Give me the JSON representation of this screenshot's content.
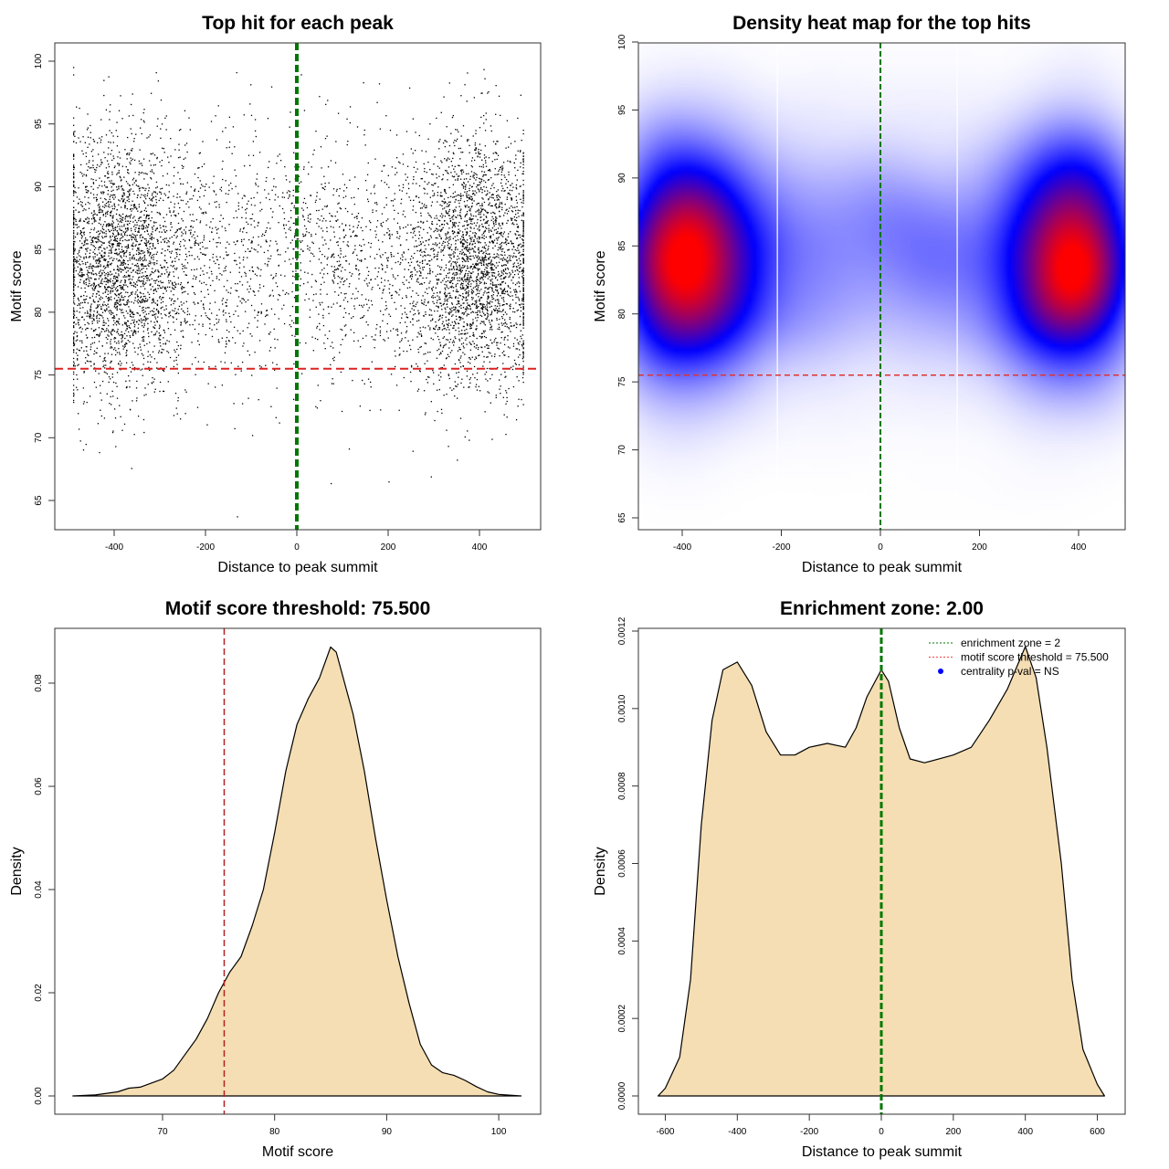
{
  "chart_data": [
    {
      "type": "scatter",
      "title": "Top hit for each peak",
      "xlabel": "Distance to peak summit",
      "ylabel": "Motif score",
      "xticks": [
        "-400",
        "-200",
        "0",
        "200",
        "400"
      ],
      "xtick_values": [
        -400,
        -200,
        0,
        200,
        400
      ],
      "yticks": [
        "65",
        "70",
        "75",
        "80",
        "85",
        "90",
        "95",
        "100"
      ],
      "ytick_values": [
        65,
        70,
        75,
        80,
        85,
        90,
        95,
        100
      ],
      "xlim": [
        -530,
        534
      ],
      "ylim": [
        62.8,
        101.5
      ],
      "threshold": 75.5,
      "enrichment_center": 0,
      "points_generator": {
        "n": 7000,
        "x_range": [
          -490,
          495
        ],
        "y_mean": 84,
        "y_sd": 5,
        "seed": 7
      },
      "colors": {
        "points": "#000000",
        "threshold": "#dd2222",
        "center": "#007700"
      }
    },
    {
      "type": "heatmap",
      "title": "Density heat map for the top hits",
      "xlabel": "Distance to peak summit",
      "ylabel": "Motif score",
      "xticks": [
        "-400",
        "-200",
        "0",
        "200",
        "400"
      ],
      "xtick_values": [
        -400,
        -200,
        0,
        200,
        400
      ],
      "yticks": [
        "65",
        "70",
        "75",
        "80",
        "85",
        "90",
        "95",
        "100"
      ],
      "ytick_values": [
        65,
        70,
        75,
        80,
        85,
        90,
        95,
        100
      ],
      "threshold": 75.5,
      "enrichment_center": 0,
      "white_lines": [
        -208,
        155
      ],
      "colors": {
        "low": "#ffffff",
        "mid": "#0000ff",
        "high": "#ff0000",
        "threshold": "#dd3333",
        "center": "#007700"
      }
    },
    {
      "type": "area",
      "title": "Motif score threshold: 75.500",
      "xlabel": "Motif score",
      "ylabel": "Density",
      "xticks": [
        "70",
        "80",
        "90",
        "100"
      ],
      "xtick_values": [
        70,
        80,
        90,
        100
      ],
      "yticks": [
        "0.00",
        "0.02",
        "0.04",
        "0.06",
        "0.08"
      ],
      "ytick_values": [
        0,
        0.02,
        0.04,
        0.06,
        0.08
      ],
      "threshold": 75.5,
      "x": [
        62,
        64,
        66,
        67,
        68,
        69,
        70,
        71,
        72,
        73,
        74,
        75,
        76,
        77,
        78,
        79,
        80,
        81,
        82,
        83,
        84,
        85,
        85.5,
        86,
        87,
        88,
        89,
        90,
        91,
        92,
        93,
        94,
        95,
        96,
        97,
        98,
        99,
        100,
        102
      ],
      "y": [
        0,
        0.0002,
        0.0008,
        0.0015,
        0.0017,
        0.0025,
        0.0033,
        0.005,
        0.008,
        0.011,
        0.015,
        0.02,
        0.024,
        0.027,
        0.033,
        0.04,
        0.051,
        0.063,
        0.072,
        0.077,
        0.081,
        0.087,
        0.086,
        0.082,
        0.074,
        0.063,
        0.05,
        0.038,
        0.027,
        0.018,
        0.01,
        0.006,
        0.0045,
        0.004,
        0.003,
        0.0018,
        0.0008,
        0.0003,
        0
      ],
      "colors": {
        "fill": "#f5deb3",
        "threshold": "#b22222"
      }
    },
    {
      "type": "area",
      "title": "Enrichment zone: 2.00",
      "xlabel": "Distance to peak summit",
      "ylabel": "Density",
      "xticks": [
        "-600",
        "-400",
        "-200",
        "0",
        "200",
        "400",
        "600"
      ],
      "xtick_values": [
        -600,
        -400,
        -200,
        0,
        200,
        400,
        600
      ],
      "yticks": [
        "0.0000",
        "0.0002",
        "0.0004",
        "0.0006",
        "0.0008",
        "0.0010",
        "0.0012"
      ],
      "ytick_values": [
        0,
        0.0002,
        0.0004,
        0.0006,
        0.0008,
        0.001,
        0.0012
      ],
      "enrichment_center": 0,
      "x": [
        -620,
        -600,
        -560,
        -530,
        -500,
        -470,
        -440,
        -400,
        -360,
        -320,
        -280,
        -240,
        -200,
        -150,
        -100,
        -70,
        -40,
        0,
        20,
        50,
        80,
        120,
        200,
        250,
        300,
        350,
        400,
        430,
        460,
        500,
        530,
        560,
        600,
        620
      ],
      "y": [
        0,
        2e-05,
        0.0001,
        0.0003,
        0.0007,
        0.00097,
        0.0011,
        0.00112,
        0.00106,
        0.00094,
        0.00088,
        0.00088,
        0.0009,
        0.00091,
        0.0009,
        0.00095,
        0.00103,
        0.0011,
        0.00107,
        0.00095,
        0.00087,
        0.00086,
        0.00088,
        0.0009,
        0.00097,
        0.00105,
        0.00116,
        0.00108,
        0.0009,
        0.0006,
        0.0003,
        0.00012,
        3e-05,
        0
      ],
      "legend": {
        "position": "top-right",
        "entries": [
          "enrichment zone = 2",
          "motif score threshold = 75.500",
          "centrality p-val = NS"
        ]
      },
      "colors": {
        "fill": "#f5deb3",
        "center": "#007700",
        "legend_zone": "#007700",
        "legend_threshold": "#ee4444",
        "legend_pval": "#0000ff"
      }
    }
  ]
}
